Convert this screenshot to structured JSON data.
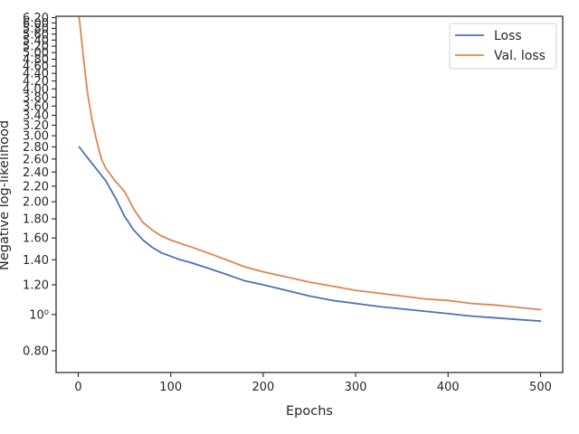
{
  "chart_data": {
    "type": "line",
    "xlabel": "Epochs",
    "ylabel": "Negative log-likelihood",
    "xlim": [
      -24,
      524
    ],
    "ylim": [
      0.7,
      6.25
    ],
    "y_scale": "log",
    "x_ticks": [
      0,
      100,
      200,
      300,
      400,
      500
    ],
    "x_tick_labels": [
      "0",
      "100",
      "200",
      "300",
      "400",
      "500"
    ],
    "y_ticks": [
      0.8,
      1.0,
      1.2,
      1.4,
      1.6,
      1.8,
      2.0,
      2.2,
      2.4,
      2.6,
      2.8,
      3.0,
      3.2,
      3.4,
      3.6,
      3.8,
      4.0,
      4.2,
      4.4,
      4.6,
      4.8,
      5.0,
      5.2,
      5.4,
      5.6,
      5.8,
      6.0,
      6.2
    ],
    "y_tick_labels": [
      "0.80",
      "10⁰",
      "1.20",
      "1.40",
      "1.60",
      "1.80",
      "2.00",
      "2.20",
      "2.40",
      "2.60",
      "2.80",
      "3.00",
      "3.20",
      "3.40",
      "3.60",
      "3.80",
      "4.00",
      "4.20",
      "4.40",
      "4.60",
      "4.80",
      "5.00",
      "5.20",
      "5.40",
      "5.60",
      "5.80",
      "6.00",
      "6.20"
    ],
    "legend_position": "top-right",
    "grid": false,
    "series": [
      {
        "name": "Loss",
        "color": "#4c72b0",
        "x": [
          1,
          10,
          20,
          30,
          41,
          50,
          60,
          70,
          80,
          90,
          100,
          110,
          120,
          140,
          160,
          180,
          200,
          225,
          250,
          275,
          300,
          325,
          350,
          375,
          400,
          425,
          450,
          475,
          500
        ],
        "y": [
          2.8,
          2.62,
          2.44,
          2.27,
          2.03,
          1.83,
          1.68,
          1.58,
          1.51,
          1.46,
          1.43,
          1.4,
          1.38,
          1.33,
          1.28,
          1.23,
          1.2,
          1.16,
          1.12,
          1.09,
          1.07,
          1.05,
          1.035,
          1.02,
          1.005,
          0.99,
          0.98,
          0.97,
          0.96
        ]
      },
      {
        "name": "Val. loss",
        "color": "#dd8452",
        "x": [
          1,
          5,
          10,
          15,
          20,
          25,
          30,
          40,
          50,
          55,
          60,
          70,
          80,
          90,
          100,
          110,
          120,
          140,
          160,
          180,
          200,
          225,
          250,
          275,
          300,
          325,
          350,
          375,
          400,
          425,
          450,
          475,
          500
        ],
        "y": [
          6.2,
          5.0,
          3.9,
          3.3,
          2.9,
          2.6,
          2.45,
          2.27,
          2.13,
          2.02,
          1.91,
          1.76,
          1.68,
          1.62,
          1.58,
          1.55,
          1.52,
          1.46,
          1.4,
          1.34,
          1.3,
          1.26,
          1.22,
          1.19,
          1.16,
          1.14,
          1.12,
          1.1,
          1.09,
          1.07,
          1.06,
          1.045,
          1.03
        ]
      }
    ]
  }
}
